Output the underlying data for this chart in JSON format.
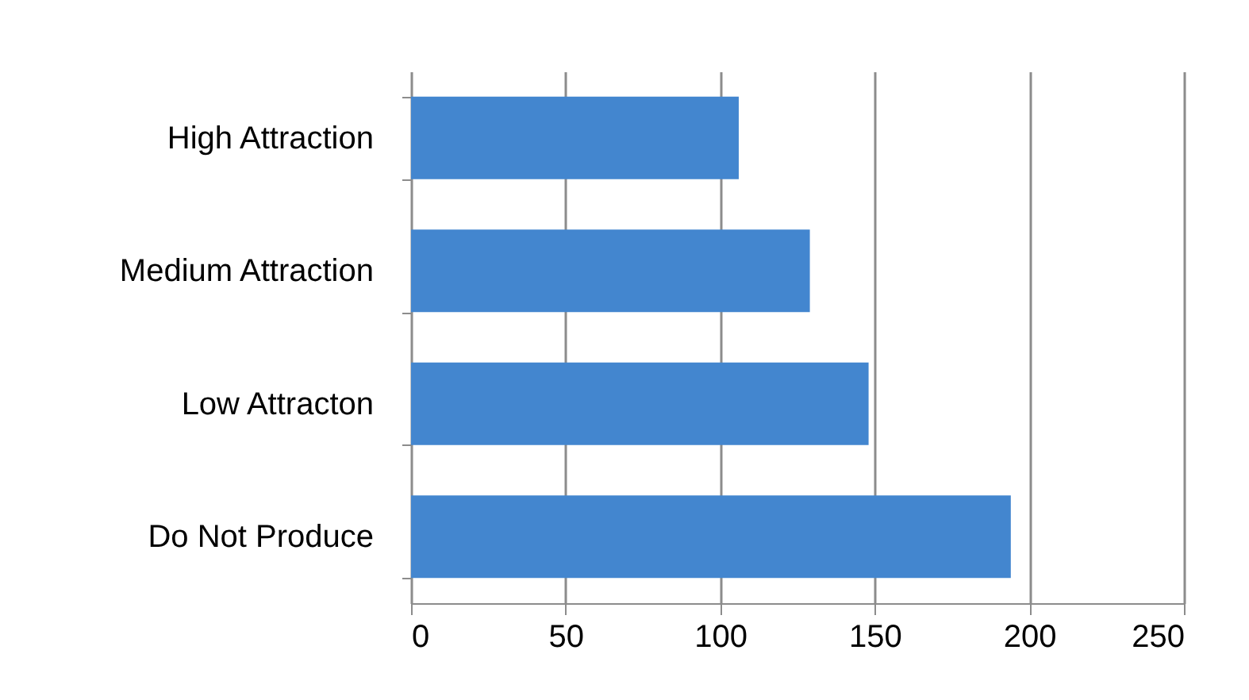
{
  "chart_data": {
    "type": "bar",
    "orientation": "horizontal",
    "categories": [
      "High Attraction",
      "Medium Attraction",
      "Low Attracton",
      "Do Not Produce"
    ],
    "values": [
      106,
      129,
      148,
      194
    ],
    "color": "#4386cf",
    "xlim": [
      0,
      250
    ],
    "xticks": [
      0,
      50,
      100,
      150,
      200,
      250
    ],
    "grid": "x"
  }
}
